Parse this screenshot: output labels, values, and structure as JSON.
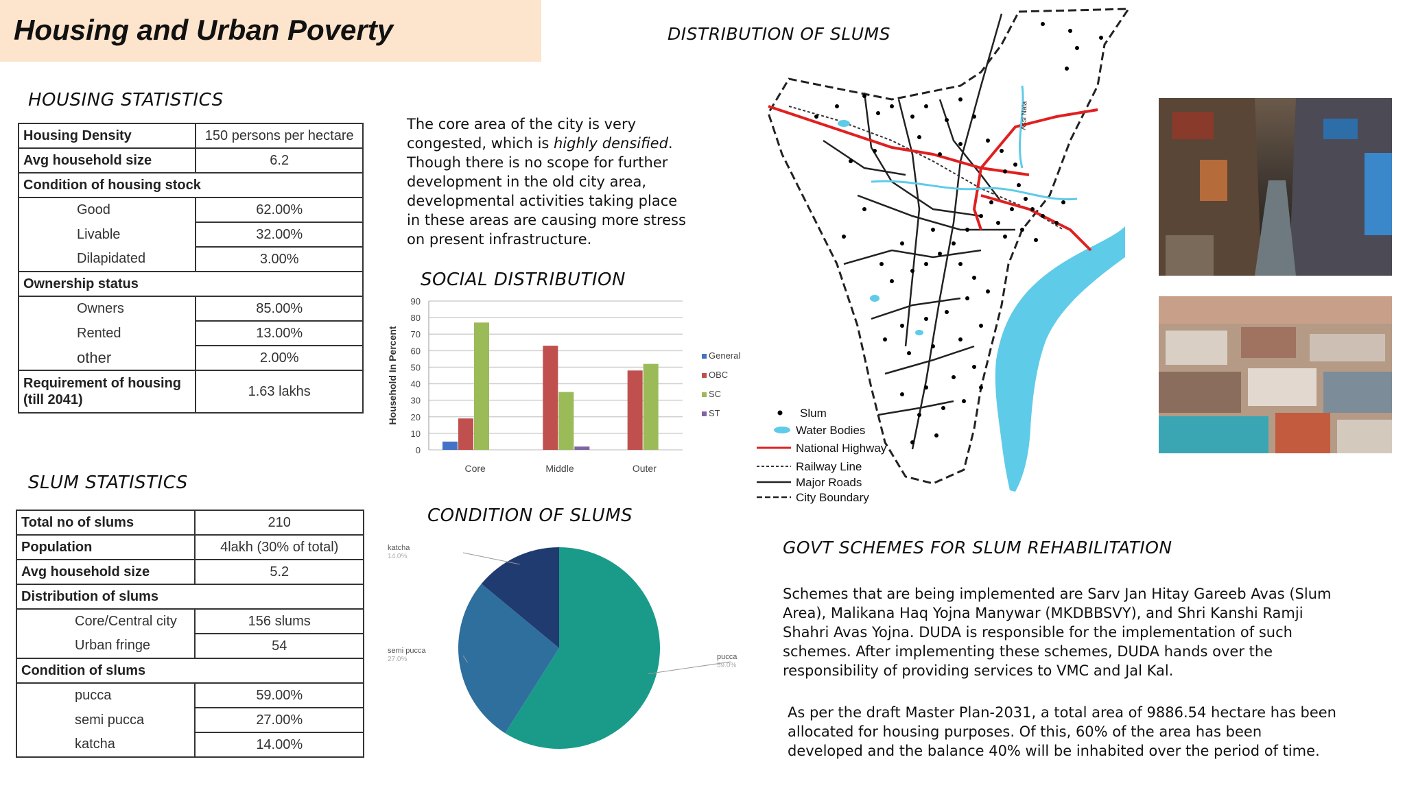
{
  "title": "Housing and Urban Poverty",
  "housing": {
    "heading": "HOUSING STATISTICS",
    "density_label": "Housing Density",
    "density_value": "150 persons per hectare",
    "hh_label": "Avg household size",
    "hh_value": "6.2",
    "condition_label": "Condition of housing stock",
    "good_label": "Good",
    "good_value": "62.00%",
    "livable_label": "Livable",
    "livable_value": "32.00%",
    "dilapidated_label": "Dilapidated",
    "dilapidated_value": "3.00%",
    "ownership_label": "Ownership status",
    "owners_label": "Owners",
    "owners_value": "85.00%",
    "rented_label": "Rented",
    "rented_value": "13.00%",
    "other_label": "other",
    "other_value": "2.00%",
    "requirement_label_1": "Requirement of housing",
    "requirement_label_2": "(till 2041)",
    "requirement_value": "1.63 lakhs"
  },
  "slum": {
    "heading": "SLUM STATISTICS",
    "total_label": "Total no of slums",
    "total_value": "210",
    "pop_label": "Population",
    "pop_value": "4lakh (30% of total)",
    "hh_label": "Avg household size",
    "hh_value": "5.2",
    "dist_label": "Distribution of slums",
    "core_label": "Core/Central city",
    "core_value": "156 slums",
    "fringe_label": "Urban fringe",
    "fringe_value": "54",
    "cond_label": "Condition of slums",
    "pucca_label": "pucca",
    "pucca_value": "59.00%",
    "semi_label": "semi pucca",
    "semi_value": "27.00%",
    "katcha_label": "katcha",
    "katcha_value": "14.00%"
  },
  "core_para": {
    "line1": "The core area of the city is very",
    "line2a": "congested, which is ",
    "line2b": "highly densified",
    "line2c": ".",
    "line3": "Though there is no scope for further",
    "line4": "development in the old city area,",
    "line5": "developmental activities taking place",
    "line6": "in these areas are causing more stress",
    "line7": "on present infrastructure."
  },
  "social_heading": "SOCIAL DISTRIBUTION",
  "condition_heading": "CONDITION OF SLUMS",
  "distribution_heading": "DISTRIBUTION OF SLUMS",
  "govt": {
    "heading": "GOVT SCHEMES FOR SLUM REHABILITATION",
    "p1": [
      "Schemes that are being implemented are Sarv Jan Hitay Gareeb Avas (Slum",
      "Area), Malikana Haq Yojna Manywar (MKDBBSVY), and Shri Kanshi Ramji",
      "Shahri Avas Yojna. DUDA is responsible for the implementation of such",
      "schemes. After implementing these schemes, DUDA hands over the",
      "responsibility of providing services to VMC and Jal Kal."
    ],
    "p2": [
      "As per the draft Master Plan-2031, a total area of 9886.54 hectare has been",
      "allocated for housing purposes. Of this, 60% of the area has been",
      "developed and the balance 40% will be inhabited over the period of time."
    ]
  },
  "map_legend": {
    "slum": "Slum",
    "water": "Water Bodies",
    "highway": "National Highway",
    "railway": "Railway Line",
    "roads": "Major Roads",
    "boundary": "City Boundary",
    "river_label": "Assi Nala"
  },
  "colors": {
    "general": "#4472c4",
    "obc": "#c0504d",
    "sc": "#9bbb59",
    "st": "#8064a2",
    "pucca": "#1a9b8a",
    "semi_pucca": "#2e6f9e",
    "katcha": "#1f3b70",
    "water": "#5ecbe8",
    "highway": "#e02020"
  },
  "chart_data": [
    {
      "type": "bar",
      "title": "SOCIAL DISTRIBUTION",
      "ylabel": "Household In Percent",
      "categories": [
        "Core",
        "Middle",
        "Outer"
      ],
      "ylim": [
        0,
        90
      ],
      "yticks": [
        0,
        10,
        20,
        30,
        40,
        50,
        60,
        70,
        80,
        90
      ],
      "grid": true,
      "legend": "right",
      "series": [
        {
          "name": "General",
          "values": [
            5,
            0,
            0
          ]
        },
        {
          "name": "OBC",
          "values": [
            19,
            63,
            48
          ]
        },
        {
          "name": "SC",
          "values": [
            77,
            35,
            52
          ]
        },
        {
          "name": "ST",
          "values": [
            0,
            2,
            0
          ]
        }
      ]
    },
    {
      "type": "pie",
      "title": "CONDITION OF SLUMS",
      "categories": [
        "pucca",
        "semi pucca",
        "katcha"
      ],
      "values": [
        59.0,
        27.0,
        14.0
      ],
      "labels": [
        "59.0%",
        "27.0%",
        "14.0%"
      ]
    }
  ]
}
